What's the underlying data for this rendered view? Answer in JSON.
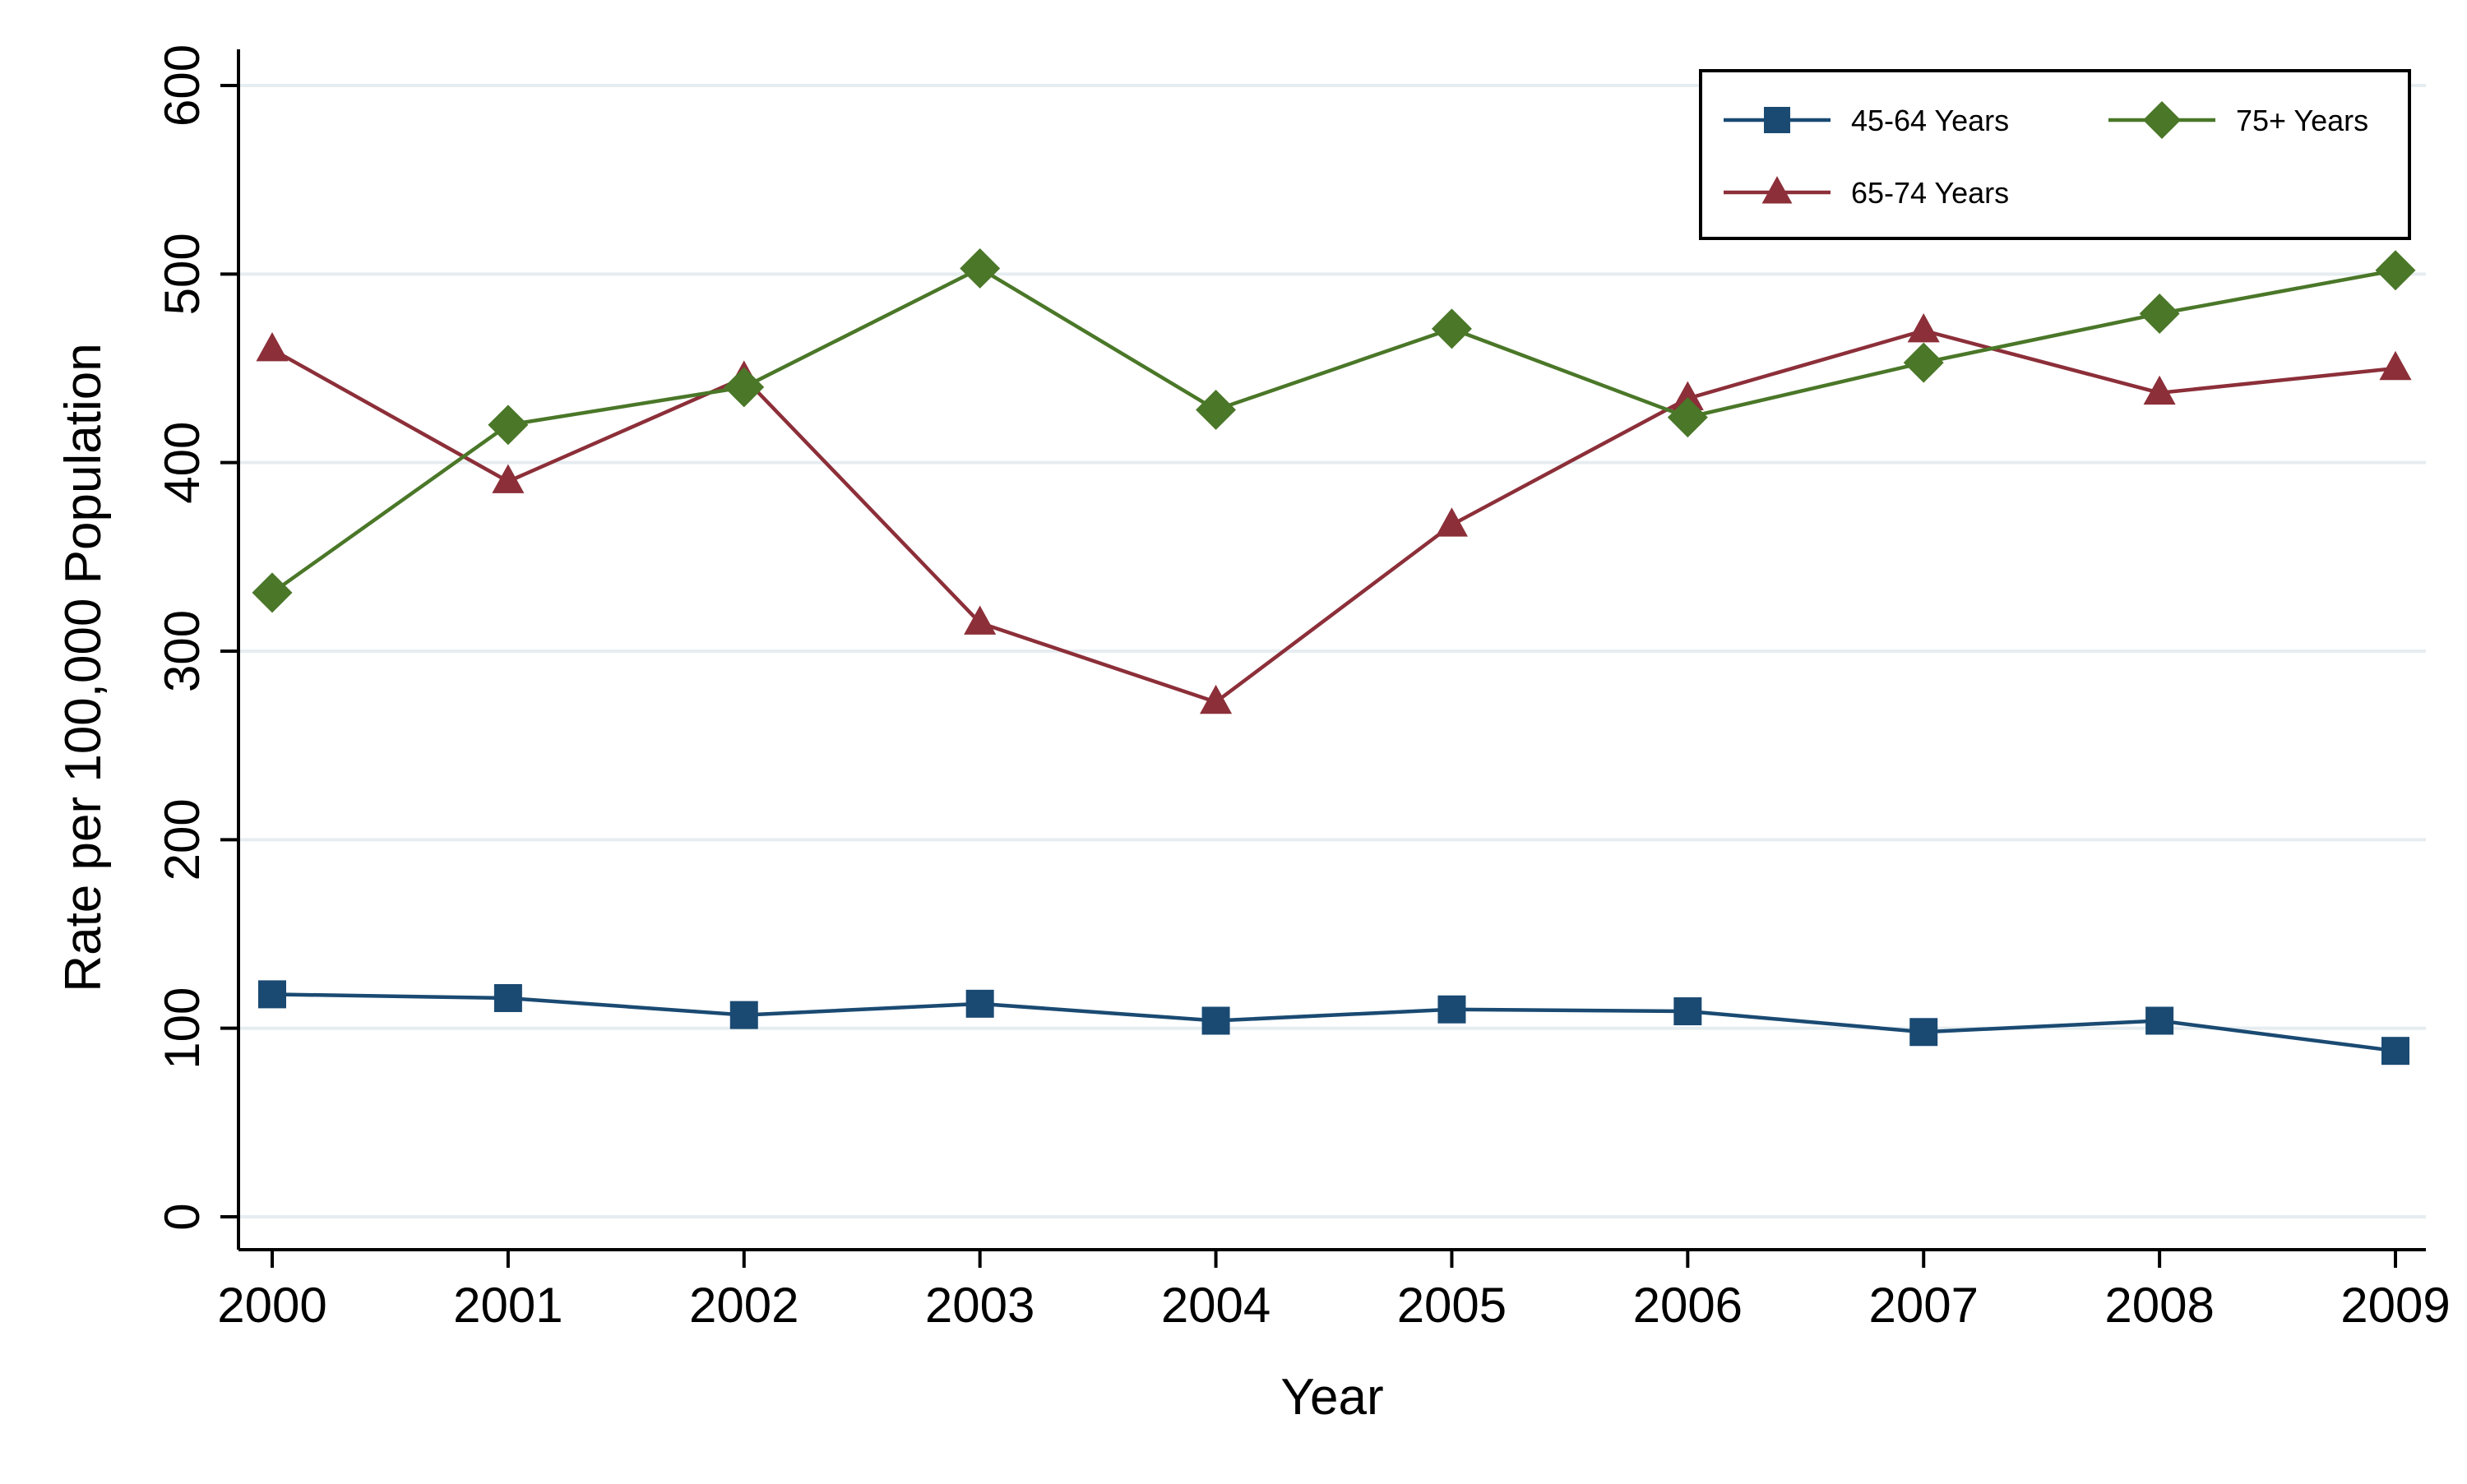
{
  "chart_data": {
    "type": "line",
    "title": "",
    "xlabel": "Year",
    "ylabel": "Rate per 100,000 Population",
    "x": [
      "2000",
      "2001",
      "2002",
      "2003",
      "2004",
      "2005",
      "2006",
      "2007",
      "2008",
      "2009"
    ],
    "ylim": [
      0,
      600
    ],
    "yticks": [
      "0",
      "100",
      "200",
      "300",
      "400",
      "500",
      "600"
    ],
    "grid": true,
    "legend_position": "top-right",
    "series": [
      {
        "name": "45-64 Years",
        "color": "#1a4a72",
        "marker": "square",
        "values": [
          118,
          116,
          107,
          113,
          104,
          110,
          109,
          98,
          104,
          88
        ]
      },
      {
        "name": "65-74 Years",
        "color": "#8c2f39",
        "marker": "triangle",
        "values": [
          460,
          390,
          445,
          315,
          273,
          367,
          434,
          470,
          437,
          450
        ]
      },
      {
        "name": "75+ Years",
        "color": "#4a7728",
        "marker": "diamond",
        "values": [
          331,
          420,
          440,
          503,
          428,
          471,
          424,
          453,
          479,
          502
        ]
      }
    ]
  }
}
